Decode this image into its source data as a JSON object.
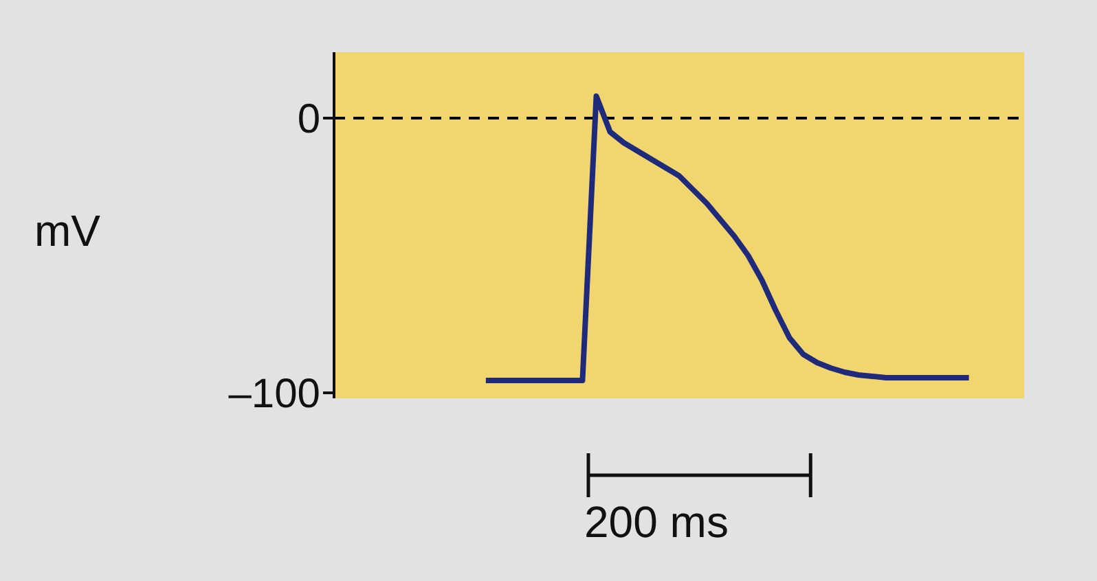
{
  "chart_data": {
    "type": "line",
    "ylabel": "mV",
    "categories": [
      null,
      null,
      null,
      null,
      null,
      null,
      null,
      null,
      null,
      null,
      null,
      null,
      null,
      null,
      null,
      null,
      null,
      null,
      null,
      null,
      null,
      null,
      null,
      null,
      null,
      null,
      null,
      null,
      null,
      null,
      null,
      null,
      null,
      null,
      null,
      null,
      null,
      null,
      null,
      null,
      null,
      null,
      null,
      null,
      null,
      null,
      null,
      null,
      null,
      null,
      null
    ],
    "series": [
      {
        "color": "#1f2a7a",
        "values": [
          null,
          null,
          null,
          null,
          null,
          null,
          null,
          null,
          null,
          null,
          null,
          -95.5,
          -95.5,
          -95.5,
          -95.5,
          -95.5,
          -95.5,
          -95.5,
          -95.5,
          8,
          -5,
          -9,
          -12,
          -15,
          -18,
          -21,
          -26,
          -31,
          -37,
          -43,
          -50,
          -59,
          -70,
          -80,
          -86,
          -89,
          -91,
          -92.5,
          -93.5,
          -94,
          -94.5,
          -94.5,
          -94.5,
          -94.5,
          -94.5,
          -94.5,
          -94.5,
          null,
          null,
          null,
          null
        ]
      }
    ],
    "ylim": [
      -102,
      24
    ],
    "yticks": [
      0,
      {
        "value": -100,
        "label": "–100"
      }
    ],
    "tick_labels": "y",
    "marker": "none",
    "line_style": "solid",
    "ref_lines": [
      {
        "axis": "y",
        "value": 0,
        "color": "#000000",
        "line_style": "dashed"
      }
    ],
    "annotations": [
      "200 ms"
    ]
  }
}
